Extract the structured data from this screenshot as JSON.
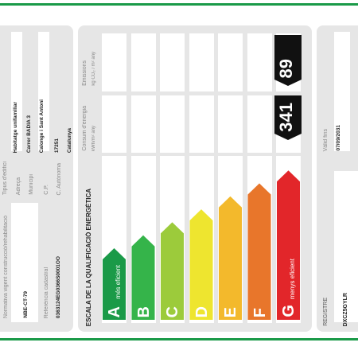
{
  "left": {
    "rows": [
      {
        "label": "Normativa vigent construcció/rehabilitació",
        "value": "NBE-CT-79"
      },
      {
        "label": "Referència cadastral",
        "value": "0363124EG0366S0001OO"
      },
      {
        "label": "Tipus d'edifici",
        "value": "Habitatge unifamiliar"
      },
      {
        "label": "Adreça",
        "value": "Carrer BADIA 3"
      },
      {
        "label": "Municipi",
        "value": "Calonge i Sant Antoni"
      },
      {
        "label": "C.P.",
        "value": "17251"
      },
      {
        "label": "C. Autònoma",
        "value": "Catalunya"
      }
    ]
  },
  "scale": {
    "title": "ESCALA DE LA QUALIFICACIÓ ENERGÈTICA",
    "consumption_label": "Consum d'energia",
    "consumption_unit": "kWh/m² any",
    "emissions_label": "Emissions",
    "emissions_unit": "kg CO₂ / m² any",
    "classes": [
      {
        "letter": "A",
        "color": "#1a9a48",
        "note": "més eficient"
      },
      {
        "letter": "B",
        "color": "#35b44a"
      },
      {
        "letter": "C",
        "color": "#9ccb3b"
      },
      {
        "letter": "D",
        "color": "#eee52f"
      },
      {
        "letter": "E",
        "color": "#f3b92c"
      },
      {
        "letter": "F",
        "color": "#e8762b"
      },
      {
        "letter": "G",
        "color": "#e2262a",
        "note": "menys eficient"
      }
    ],
    "consumption": 341,
    "emissions": 89
  },
  "right": {
    "valid_label": "Vàlid fins",
    "valid_date": "07/09/2031",
    "register_label": "REGISTRE",
    "register_code": "DXCZ5GYLR"
  }
}
